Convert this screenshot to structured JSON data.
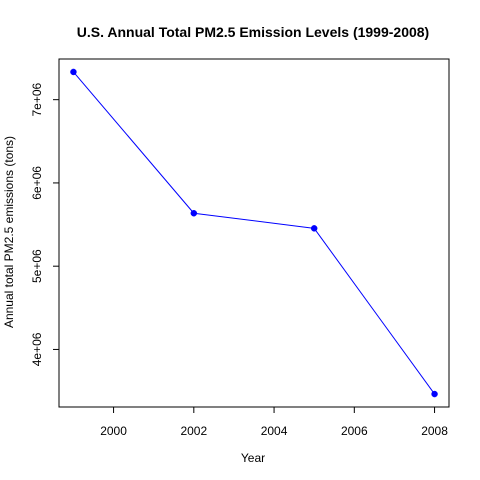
{
  "chart_data": {
    "type": "line",
    "title": "U.S. Annual Total PM2.5 Emission Levels (1999-2008)",
    "xlabel": "Year",
    "ylabel": "Annual total PM2.5 emissions (tons)",
    "x": [
      1999,
      2002,
      2005,
      2008
    ],
    "series": [
      {
        "values": [
          7332967,
          5635780,
          5454703,
          3464206
        ],
        "color": "#0000ff"
      }
    ],
    "xlim": [
      1998.64,
      2008.36
    ],
    "ylim": [
      3308695,
      7488478
    ],
    "x_ticks": [
      2000,
      2002,
      2004,
      2006,
      2008
    ],
    "x_tick_labels": [
      "2000",
      "2002",
      "2004",
      "2006",
      "2008"
    ],
    "y_ticks": [
      4000000,
      5000000,
      6000000,
      7000000
    ],
    "y_tick_labels": [
      "4e+06",
      "5e+06",
      "6e+06",
      "7e+06"
    ],
    "marker": "filled-circle",
    "grid": false,
    "legend": "none"
  }
}
